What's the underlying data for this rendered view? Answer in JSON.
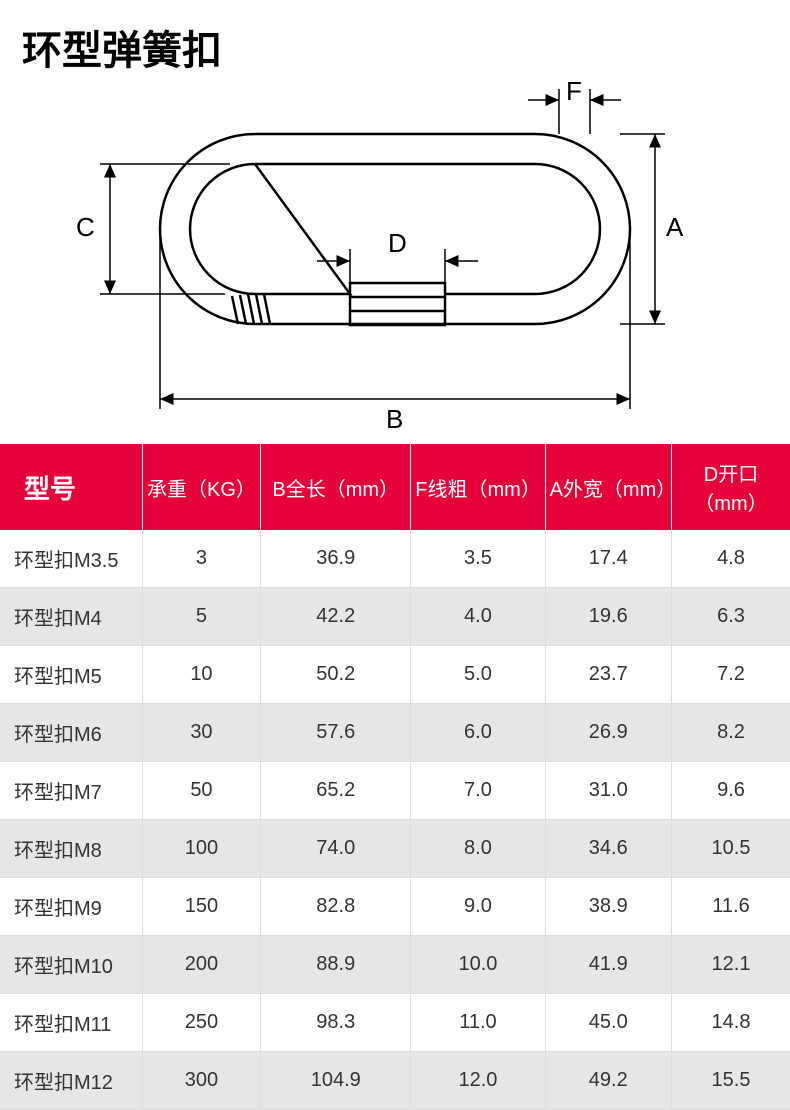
{
  "title": "环型弹簧扣",
  "diagram": {
    "labels": {
      "A": "A",
      "B": "B",
      "C": "C",
      "D": "D",
      "F": "F"
    },
    "stroke_color": "#000000",
    "stroke_width_main": 2.5,
    "stroke_width_dim": 1.5,
    "label_fontsize": 26
  },
  "table": {
    "header_bg": "#e60039",
    "header_fg": "#ffffff",
    "row_alt_bg": "#e6e6e6",
    "border_color": "#dddddd",
    "columns": [
      "型号",
      "承重（KG）",
      "B全长（mm）",
      "F线粗（mm）",
      "A外宽（mm）",
      "D开口（mm）"
    ],
    "col_widths": [
      "18%",
      "15%",
      "19%",
      "17%",
      "16%",
      "15%"
    ],
    "rows": [
      [
        "环型扣M3.5",
        "3",
        "36.9",
        "3.5",
        "17.4",
        "4.8"
      ],
      [
        "环型扣M4",
        "5",
        "42.2",
        "4.0",
        "19.6",
        "6.3"
      ],
      [
        "环型扣M5",
        "10",
        "50.2",
        "5.0",
        "23.7",
        "7.2"
      ],
      [
        "环型扣M6",
        "30",
        "57.6",
        "6.0",
        "26.9",
        "8.2"
      ],
      [
        "环型扣M7",
        "50",
        "65.2",
        "7.0",
        "31.0",
        "9.6"
      ],
      [
        "环型扣M8",
        "100",
        "74.0",
        "8.0",
        "34.6",
        "10.5"
      ],
      [
        "环型扣M9",
        "150",
        "82.8",
        "9.0",
        "38.9",
        "11.6"
      ],
      [
        "环型扣M10",
        "200",
        "88.9",
        "10.0",
        "41.9",
        "12.1"
      ],
      [
        "环型扣M11",
        "250",
        "98.3",
        "11.0",
        "45.0",
        "14.8"
      ],
      [
        "环型扣M12",
        "300",
        "104.9",
        "12.0",
        "49.2",
        "15.5"
      ]
    ]
  }
}
